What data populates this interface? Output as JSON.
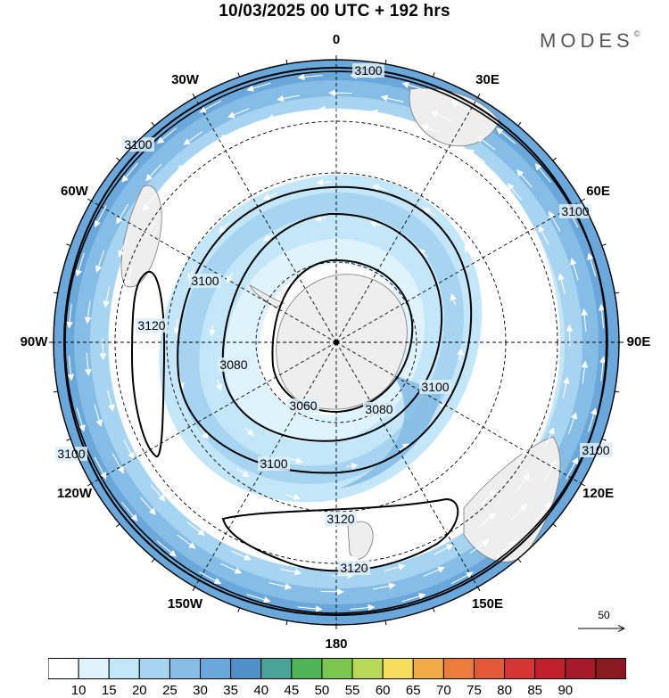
{
  "title": "10/03/2025  00 UTC  + 192 hrs",
  "brand": "MODES",
  "brand_mark": "©",
  "longitude_labels": [
    {
      "key": "lon0",
      "text": "0",
      "angle": 0
    },
    {
      "key": "lon30e",
      "text": "30E",
      "angle": 30
    },
    {
      "key": "lon60e",
      "text": "60E",
      "angle": 60
    },
    {
      "key": "lon90e",
      "text": "90E",
      "angle": 90
    },
    {
      "key": "lon120e",
      "text": "120E",
      "angle": 120
    },
    {
      "key": "lon150e",
      "text": "150E",
      "angle": 150
    },
    {
      "key": "lon180",
      "text": "180",
      "angle": 180
    },
    {
      "key": "lon150w",
      "text": "150W",
      "angle": 210
    },
    {
      "key": "lon120w",
      "text": "120W",
      "angle": 240
    },
    {
      "key": "lon90w",
      "text": "90W",
      "angle": 270
    },
    {
      "key": "lon60w",
      "text": "60W",
      "angle": 300
    },
    {
      "key": "lon30w",
      "text": "30W",
      "angle": 330
    }
  ],
  "contour_labels": [
    "3100",
    "3100",
    "3100",
    "3100",
    "3100",
    "3100",
    "3100",
    "3120",
    "3080",
    "3060",
    "3080",
    "3100",
    "3120",
    "3120"
  ],
  "reference_vector": "50",
  "colorbar": {
    "colors": [
      "#ffffff",
      "#dff3fd",
      "#c3e6f8",
      "#a7d4f1",
      "#86bde6",
      "#6aa7db",
      "#4f90c9",
      "#4aa399",
      "#4fb456",
      "#7cc64f",
      "#b7d958",
      "#f6de5c",
      "#f3aa48",
      "#ec7c3c",
      "#e4583a",
      "#d73535",
      "#c01f2b",
      "#a6192a",
      "#8a1a1f"
    ],
    "labels": [
      "10",
      "15",
      "20",
      "25",
      "30",
      "35",
      "40",
      "45",
      "50",
      "55",
      "60",
      "65",
      "70",
      "75",
      "80",
      "85",
      "90"
    ]
  }
}
